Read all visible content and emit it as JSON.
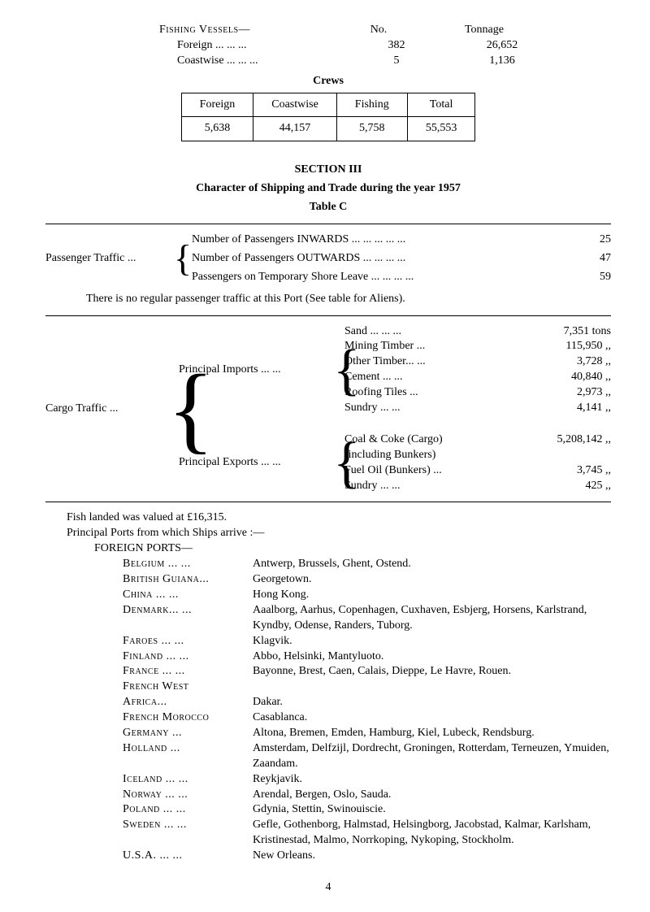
{
  "fishing": {
    "title": "Fishing Vessels—",
    "head_no": "No.",
    "head_ton": "Tonnage",
    "rows": [
      {
        "label": "Foreign    ...    ...    ...",
        "no": "382",
        "ton": "26,652"
      },
      {
        "label": "Coastwise  ...    ...    ...",
        "no": "5",
        "ton": "1,136"
      }
    ],
    "crews_label": "Crews",
    "crews_head": [
      "Foreign",
      "Coastwise",
      "Fishing",
      "Total"
    ],
    "crews_vals": [
      "5,638",
      "44,157",
      "5,758",
      "55,553"
    ]
  },
  "section3": {
    "title": "SECTION III",
    "subtitle": "Character of Shipping and Trade during the year 1957",
    "table": "Table C"
  },
  "passenger": {
    "label": "Passenger Traffic  ...",
    "rows": [
      {
        "txt": "Number of Passengers INWARDS  ...    ...    ...    ...    ...",
        "num": "25"
      },
      {
        "txt": "Number of Passengers OUTWARDS          ...    ...    ...    ...",
        "num": "47"
      },
      {
        "txt": "Passengers on Temporary Shore Leave       ...    ...    ...    ...",
        "num": "59"
      }
    ],
    "note": "There is no regular passenger traffic at this Port (See table for Aliens)."
  },
  "cargo": {
    "label": "Cargo Traffic      ...",
    "imports": {
      "label": "Principal Imports        ...    ...",
      "items": [
        {
          "name": "Sand   ...        ...        ...",
          "val": "7,351 tons"
        },
        {
          "name": "Mining Timber             ...",
          "val": "115,950  ,,"
        },
        {
          "name": "Other Timber...        ...",
          "val": "3,728  ,,"
        },
        {
          "name": "Cement           ...        ...",
          "val": "40,840  ,,"
        },
        {
          "name": "Roofing Tiles           ...",
          "val": "2,973  ,,"
        },
        {
          "name": "Sundry           ...        ...",
          "val": "4,141  ,,"
        }
      ]
    },
    "exports": {
      "label": "Principal Exports        ...    ...",
      "items": [
        {
          "name": "Coal & Coke (Cargo)",
          "val": "5,208,142  ,,"
        },
        {
          "name": "   (including Bunkers)",
          "val": ""
        },
        {
          "name": "Fuel Oil (Bunkers)  ...",
          "val": "3,745  ,,"
        },
        {
          "name": "Sundry          ...        ...",
          "val": "425  ,,"
        }
      ]
    }
  },
  "ports": {
    "fish_landed": "Fish landed was valued at £16,315.",
    "intro": "Principal Ports from which Ships arrive :—",
    "head": "FOREIGN PORTS—",
    "list": [
      {
        "c": "Belgium ...      ...",
        "p": "Antwerp, Brussels, Ghent, Ostend."
      },
      {
        "c": "British Guiana...",
        "p": "Georgetown."
      },
      {
        "c": "China      ...      ...",
        "p": "Hong Kong."
      },
      {
        "c": "Denmark...      ...",
        "p": "Aaalborg, Aarhus, Copenhagen, Cuxhaven, Esbjerg, Horsens, Karlstrand, Kyndby, Odense, Randers, Tuborg."
      },
      {
        "c": "Faroes   ...      ...",
        "p": "Klagvik."
      },
      {
        "c": "Finland ...      ...",
        "p": "Abbo, Helsinki, Mantyluoto."
      },
      {
        "c": "France   ...      ...",
        "p": "Bayonne, Brest, Caen, Calais, Dieppe, Le Havre, Rouen."
      },
      {
        "c": "French West",
        "p": ""
      },
      {
        "c": "        Africa...",
        "p": "Dakar."
      },
      {
        "c": "French Morocco",
        "p": "Casablanca."
      },
      {
        "c": "Germany        ...",
        "p": "Altona, Bremen, Emden, Hamburg, Kiel, Lubeck, Rendsburg."
      },
      {
        "c": "Holland         ...",
        "p": "Amsterdam, Delfzijl, Dordrecht, Groningen, Rotterdam, Terneuzen, Ymuiden, Zaandam."
      },
      {
        "c": "Iceland ...      ...",
        "p": "Reykjavik."
      },
      {
        "c": "Norway ...      ...",
        "p": "Arendal, Bergen, Oslo, Sauda."
      },
      {
        "c": "Poland   ...      ...",
        "p": "Gdynia, Stettin, Swinouiscie."
      },
      {
        "c": "Sweden   ...      ...",
        "p": "Gefle, Gothenborg, Halmstad, Helsingborg, Jacobstad, Kalmar, Karlsham, Kristinestad, Malmo, Norrkoping, Nykoping, Stockholm."
      },
      {
        "c": "U.S.A.     ...      ...",
        "p": "New Orleans."
      }
    ]
  },
  "page_number": "4"
}
